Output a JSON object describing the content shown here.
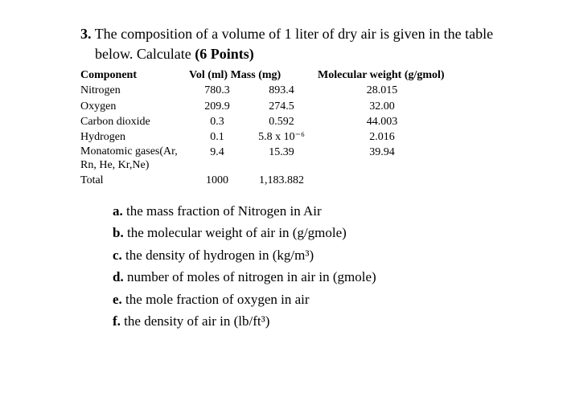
{
  "question": {
    "number": "3.",
    "intro_part1": "The composition of a volume of 1 liter of dry air is given in the table below. Calculate ",
    "points": "(6 Points)"
  },
  "table": {
    "headers": {
      "component": "Component",
      "volmass": "Vol (ml) Mass (mg)",
      "mw": "Molecular weight (g/gmol)"
    },
    "rows": [
      {
        "component": "Nitrogen",
        "vol": "780.3",
        "mass": "893.4",
        "mw": "28.015"
      },
      {
        "component": "Oxygen",
        "vol": "209.9",
        "mass": "274.5",
        "mw": "32.00"
      },
      {
        "component": "Carbon dioxide",
        "vol": "0.3",
        "mass": "0.592",
        "mw": "44.003"
      },
      {
        "component": "Hydrogen",
        "vol": "0.1",
        "mass": "5.8 x 10⁻⁶",
        "mw": "2.016"
      },
      {
        "component": "Monatomic gases(Ar, Rn, He, Kr,Ne)",
        "vol": "9.4",
        "mass": "15.39",
        "mw": "39.94"
      }
    ],
    "total": {
      "component": "Total",
      "vol": "1000",
      "mass": "1,183.882",
      "mw": ""
    }
  },
  "subquestions": [
    {
      "letter": "a.",
      "text": " the mass fraction of Nitrogen in Air"
    },
    {
      "letter": "b.",
      "text": " the molecular weight of air in (g/gmole)"
    },
    {
      "letter": "c.",
      "text": " the density of hydrogen in (kg/m³)"
    },
    {
      "letter": "d.",
      "text": " number of moles of nitrogen in air in (gmole)"
    },
    {
      "letter": "e.",
      "text": " the mole fraction of oxygen in air"
    },
    {
      "letter": "f.",
      "text": " the density of air in (lb/ft³)"
    }
  ]
}
